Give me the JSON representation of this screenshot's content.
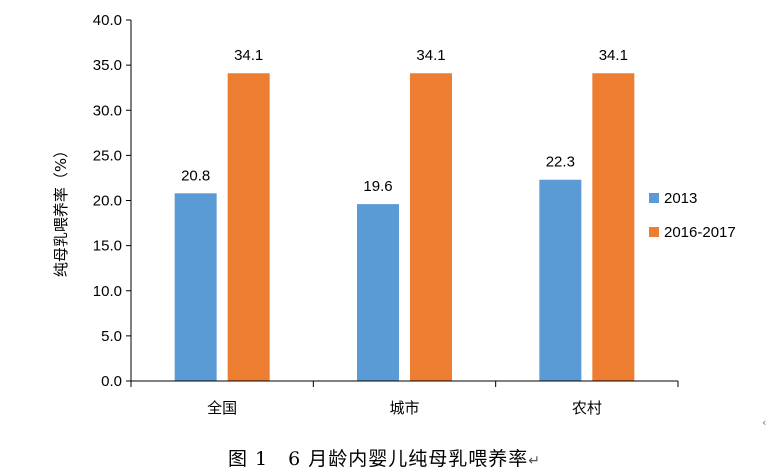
{
  "chart_data": {
    "type": "bar",
    "categories": [
      "全国",
      "城市",
      "农村"
    ],
    "series": [
      {
        "name": "2013",
        "values": [
          20.8,
          19.6,
          22.3
        ],
        "color": "#5B9BD5"
      },
      {
        "name": "2016-2017",
        "values": [
          34.1,
          34.1,
          34.1
        ],
        "color": "#ED7D31"
      }
    ],
    "ylabel": "纯母乳喂养率（%）",
    "ylim": [
      0,
      40
    ],
    "yticks": [
      "0.0",
      "5.0",
      "10.0",
      "15.0",
      "20.0",
      "25.0",
      "30.0",
      "35.0",
      "40.0"
    ],
    "data_labels": [
      [
        "20.8",
        "19.6",
        "22.3"
      ],
      [
        "34.1",
        "34.1",
        "34.1"
      ]
    ],
    "legend_position": "right",
    "grid": false
  },
  "caption": {
    "text": "图 1　6 月龄内婴儿纯母乳喂养率",
    "return_mark": "↵"
  },
  "edge_mark": "‹"
}
